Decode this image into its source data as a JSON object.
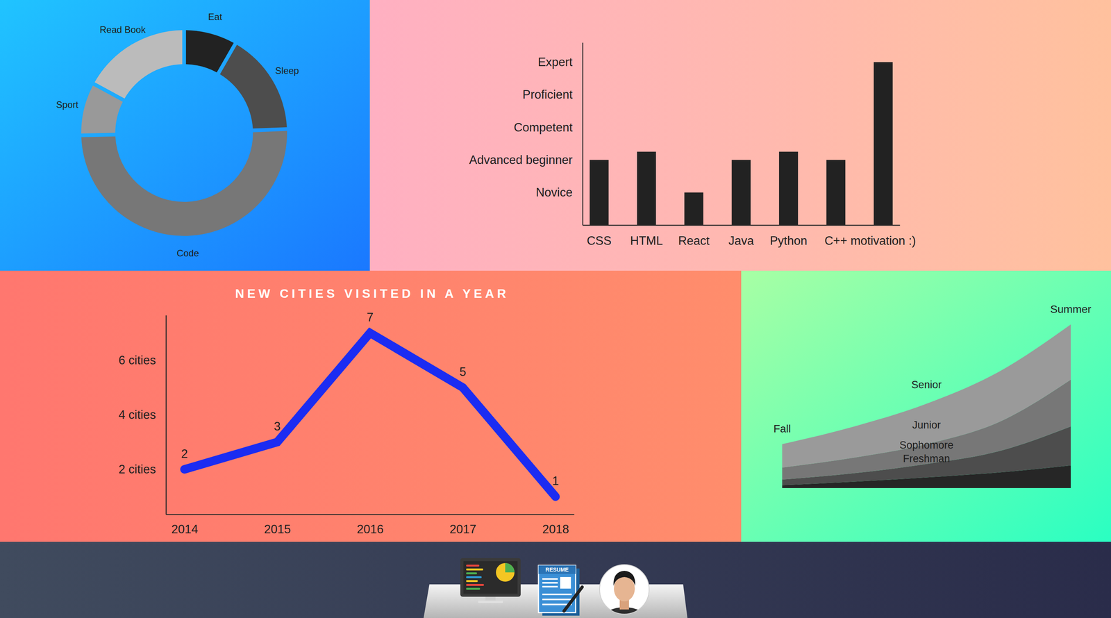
{
  "chart_data": [
    {
      "type": "donut",
      "categories": [
        "Eat",
        "Sleep",
        "Code",
        "Sport",
        "Read Book"
      ],
      "values": [
        8,
        16,
        51,
        8,
        17
      ],
      "colors": [
        "#222222",
        "#4d4d4d",
        "#777777",
        "#999999",
        "#bbbbbb"
      ]
    },
    {
      "type": "bar",
      "categories": [
        "CSS",
        "HTML",
        "React",
        "Java",
        "Python",
        "C++",
        "motivation :)"
      ],
      "values": [
        2,
        2.25,
        1,
        2,
        2.25,
        2,
        5
      ],
      "color": "#222222",
      "ylim": [
        0,
        5.6
      ],
      "yticks": [
        {
          "value": 1,
          "label": "Novice"
        },
        {
          "value": 2,
          "label": "Advanced beginner"
        },
        {
          "value": 3,
          "label": "Competent"
        },
        {
          "value": 4,
          "label": "Proficient"
        },
        {
          "value": 5,
          "label": "Expert"
        }
      ]
    },
    {
      "type": "line",
      "title": "NEW CITIES VISITED IN A YEAR",
      "x": [
        2014,
        2015,
        2016,
        2017,
        2018
      ],
      "values": [
        2,
        3,
        7,
        5,
        1
      ],
      "color": "#1b2cf2",
      "xlim": [
        2013.8,
        2018.2
      ],
      "xticks": [
        2014,
        2015,
        2016,
        2017,
        2018
      ],
      "ylim": [
        0.35,
        7.65
      ],
      "yticks": [
        {
          "value": 2,
          "label": "2 cities"
        },
        {
          "value": 4,
          "label": "4 cities"
        },
        {
          "value": 6,
          "label": "6 cities"
        }
      ],
      "data_labels": true
    },
    {
      "type": "area",
      "stacked": true,
      "tick_labels": "x",
      "categories": [
        "Fall",
        null,
        null,
        null,
        "Summer"
      ],
      "series": [
        {
          "name": "Freshman",
          "color": "#262626",
          "values": [
            4,
            9,
            15,
            22,
            32
          ]
        },
        {
          "name": "Sophomore",
          "color": "#4d4d4d",
          "values": [
            8,
            12,
            19,
            30,
            55
          ]
        },
        {
          "name": "Junior",
          "color": "#777777",
          "values": [
            17,
            22,
            28,
            41,
            66
          ]
        },
        {
          "name": "Senior",
          "color": "#9a9a9a",
          "values": [
            33,
            44,
            57,
            71,
            78
          ]
        }
      ]
    }
  ],
  "dock": {
    "resume_label": "RESUME"
  }
}
